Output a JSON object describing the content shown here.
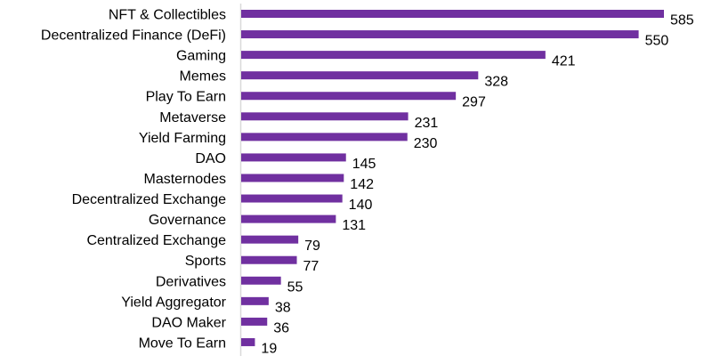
{
  "chart_data": {
    "type": "bar",
    "orientation": "horizontal",
    "title": "",
    "xlabel": "",
    "ylabel": "",
    "categories": [
      "NFT & Collectibles",
      "Decentralized Finance (DeFi)",
      "Gaming",
      "Memes",
      "Play To Earn",
      "Metaverse",
      "Yield Farming",
      "DAO",
      "Masternodes",
      "Decentralized Exchange",
      "Governance",
      "Centralized Exchange",
      "Sports",
      "Derivatives",
      "Yield Aggregator",
      "DAO Maker",
      "Move To Earn"
    ],
    "values": [
      585,
      550,
      421,
      328,
      297,
      231,
      230,
      145,
      142,
      140,
      131,
      79,
      77,
      55,
      38,
      36,
      19
    ],
    "xlim": [
      0,
      585
    ],
    "grid": false,
    "data_labels": true,
    "bar_color": "#7030a0",
    "axis_color": "#d9d9d9"
  }
}
